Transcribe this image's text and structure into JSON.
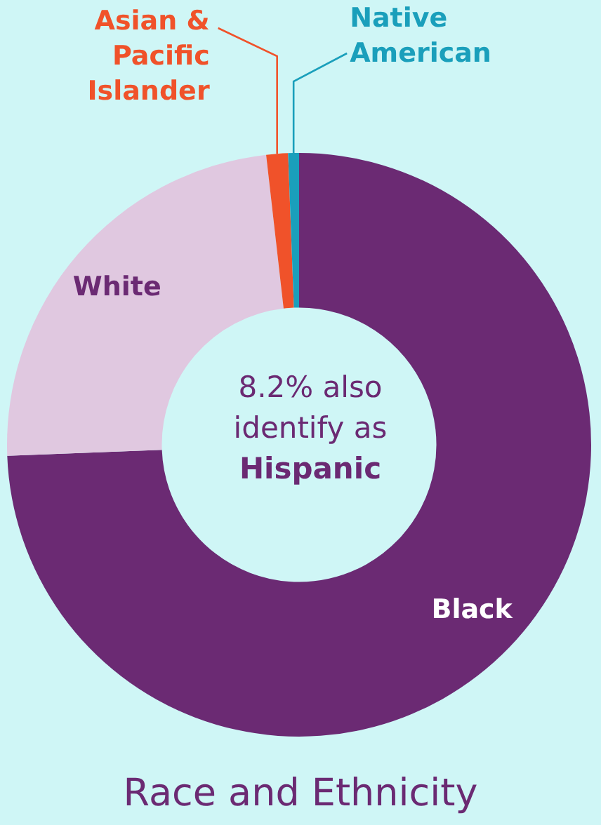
{
  "chart_data": {
    "type": "donut",
    "title": "Race and Ethnicity",
    "categories": [
      "Black",
      "White",
      "Asian & Pacific Islander",
      "Native American"
    ],
    "values": [
      74.4,
      23.8,
      1.2,
      0.6
    ],
    "colors": [
      "#6b2a73",
      "#e0c8e0",
      "#f0522a",
      "#1a9fbb"
    ],
    "annotations": [
      "8.2% also identify as Hispanic"
    ],
    "legend": false
  }
}
